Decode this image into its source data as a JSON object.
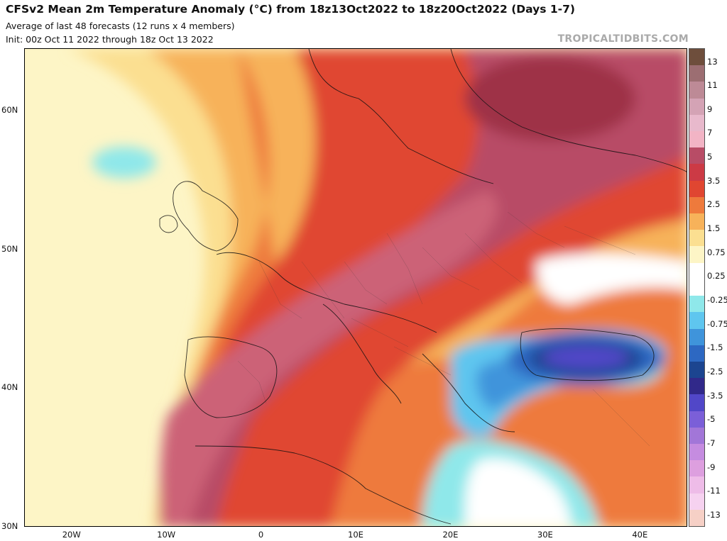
{
  "header": {
    "title": "CFSv2 Mean 2m Temperature Anomaly (°C) from 18z13Oct2022 to 18z20Oct2022 (Days 1-7)",
    "subtitle_line1": "Average of last 48 forecasts (12 runs x 4 members)",
    "subtitle_line2": "Init: 00z Oct 11 2022 through 18z Oct 13 2022",
    "watermark": "TROPICALTIDBITS.COM"
  },
  "map": {
    "lat_labels": [
      "60N",
      "50N",
      "40N",
      "30N"
    ],
    "lon_labels": [
      "20W",
      "10W",
      "0",
      "10E",
      "20E",
      "30E",
      "40E"
    ],
    "lat_range": [
      30,
      64.5
    ],
    "lon_range": [
      -25,
      45
    ],
    "anomaly_regions": [
      {
        "name": "western Europe warm band",
        "anomaly": "3.5 to 5"
      },
      {
        "name": "Iberia / North Africa warm",
        "anomaly": "3.5 to 5"
      },
      {
        "name": "north-west Russia warm",
        "anomaly": "3.5 to 5"
      },
      {
        "name": "Black Sea cold core",
        "anomaly": "-3.5 to -5"
      },
      {
        "name": "Eastern Mediterranean cool",
        "anomaly": "-0.25 to -1.5"
      }
    ]
  },
  "colorbar": {
    "labels": [
      "13",
      "11",
      "9",
      "7",
      "5",
      "3.5",
      "2.5",
      "1.5",
      "0.75",
      "0.25",
      "-0.25",
      "-0.75",
      "-1.5",
      "-2.5",
      "-3.5",
      "-5",
      "-7",
      "-9",
      "-11",
      "-13"
    ],
    "colors": [
      "#6e4e3c",
      "#9c6e72",
      "#bd8a96",
      "#d4a3b5",
      "#e8b9cc",
      "#f2b4c5",
      "#b84c66",
      "#cc3a45",
      "#e04631",
      "#ee7a3c",
      "#f7b25a",
      "#fbdf91",
      "#fdf5c6",
      "#ffffff",
      "#ffffff",
      "#8fe8ea",
      "#5fc6ef",
      "#3f94db",
      "#2d68c2",
      "#1c4590",
      "#31298a",
      "#5147c8",
      "#7b5fd8",
      "#a276d8",
      "#c58ce0",
      "#dd9fdf",
      "#eebce8",
      "#f6d2f0",
      "#f6d0c6"
    ]
  }
}
